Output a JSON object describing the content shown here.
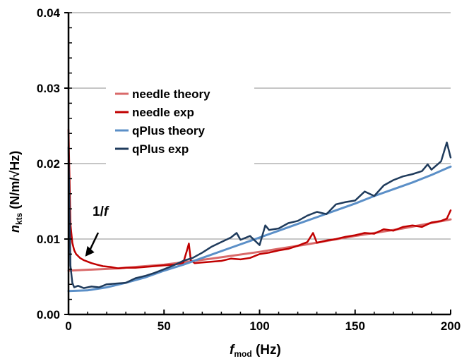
{
  "chart_data": {
    "type": "line",
    "title": "",
    "xlabel": {
      "main": "f",
      "sub": "mod",
      "unit": "(Hz)"
    },
    "ylabel": {
      "main": "n",
      "sub": "kts",
      "unit": "(N/m/√Hz)"
    },
    "xlim": [
      0,
      200
    ],
    "ylim": [
      0,
      0.04
    ],
    "x_ticks": [
      0,
      50,
      100,
      150,
      200
    ],
    "x_tick_labels": [
      "0",
      "50",
      "100",
      "150",
      "200"
    ],
    "y_ticks": [
      0,
      0.01,
      0.02,
      0.03,
      0.04
    ],
    "y_tick_labels": [
      "0.00",
      "0.01",
      "0.02",
      "0.03",
      "0.04"
    ],
    "grid": "horizontal major lines",
    "legend_position": "top-left",
    "annotation": {
      "text": "1/f",
      "points_to": {
        "x": 8,
        "y": 0.0073
      }
    },
    "series": [
      {
        "name": "needle theory",
        "color": "#d96a6a",
        "x": [
          0,
          25,
          50,
          75,
          100,
          125,
          150,
          175,
          200
        ],
        "y": [
          0.0058,
          0.0061,
          0.0066,
          0.0074,
          0.0083,
          0.0093,
          0.0104,
          0.0114,
          0.0126
        ]
      },
      {
        "name": "needle exp",
        "color": "#c00000",
        "x": [
          0,
          1,
          2,
          3,
          4,
          6,
          8,
          10,
          12,
          15,
          18,
          22,
          26,
          30,
          35,
          40,
          45,
          50,
          55,
          60,
          62,
          63,
          64,
          66,
          70,
          75,
          80,
          85,
          90,
          95,
          100,
          105,
          110,
          115,
          120,
          125,
          128,
          130,
          135,
          140,
          145,
          150,
          155,
          160,
          165,
          170,
          175,
          180,
          185,
          190,
          195,
          198,
          200
        ],
        "y": [
          0.0245,
          0.012,
          0.0095,
          0.0085,
          0.008,
          0.0075,
          0.0072,
          0.007,
          0.0068,
          0.0066,
          0.0064,
          0.0063,
          0.0061,
          0.0062,
          0.0062,
          0.0063,
          0.0064,
          0.0065,
          0.0066,
          0.0068,
          0.0085,
          0.0094,
          0.0072,
          0.0068,
          0.0069,
          0.007,
          0.0071,
          0.0074,
          0.0073,
          0.0075,
          0.008,
          0.0082,
          0.0085,
          0.0087,
          0.0091,
          0.0096,
          0.0108,
          0.0095,
          0.0098,
          0.01,
          0.0103,
          0.0105,
          0.0108,
          0.0107,
          0.0113,
          0.0111,
          0.0116,
          0.0118,
          0.0116,
          0.0122,
          0.0124,
          0.0127,
          0.0138
        ]
      },
      {
        "name": "qPlus theory",
        "color": "#5b8fc7",
        "x": [
          0,
          10,
          20,
          30,
          40,
          50,
          60,
          70,
          80,
          90,
          100,
          110,
          120,
          130,
          140,
          150,
          160,
          170,
          180,
          190,
          200
        ],
        "y": [
          0.0031,
          0.0032,
          0.0036,
          0.0042,
          0.0049,
          0.0058,
          0.0066,
          0.0075,
          0.0084,
          0.0093,
          0.0102,
          0.0111,
          0.012,
          0.0129,
          0.0138,
          0.0147,
          0.0157,
          0.0166,
          0.0175,
          0.0185,
          0.0196
        ]
      },
      {
        "name": "qPlus exp",
        "color": "#1f3b5c",
        "x": [
          0,
          1,
          2,
          3,
          5,
          8,
          12,
          16,
          20,
          25,
          30,
          35,
          40,
          45,
          50,
          55,
          60,
          65,
          70,
          75,
          80,
          85,
          88,
          90,
          95,
          100,
          103,
          105,
          110,
          115,
          120,
          125,
          130,
          135,
          140,
          145,
          150,
          155,
          160,
          165,
          170,
          175,
          180,
          185,
          188,
          190,
          195,
          198,
          200
        ],
        "y": [
          0.0222,
          0.0065,
          0.0042,
          0.0036,
          0.0038,
          0.0035,
          0.0037,
          0.0036,
          0.004,
          0.0041,
          0.0042,
          0.0048,
          0.0051,
          0.0055,
          0.006,
          0.0065,
          0.0071,
          0.0075,
          0.0082,
          0.009,
          0.0096,
          0.0102,
          0.0108,
          0.0099,
          0.0104,
          0.0092,
          0.0118,
          0.0112,
          0.0114,
          0.0121,
          0.0124,
          0.0131,
          0.0136,
          0.0133,
          0.0146,
          0.0149,
          0.0151,
          0.0163,
          0.0157,
          0.0171,
          0.0178,
          0.0183,
          0.0186,
          0.019,
          0.0199,
          0.0192,
          0.0203,
          0.0228,
          0.0208
        ]
      }
    ]
  }
}
